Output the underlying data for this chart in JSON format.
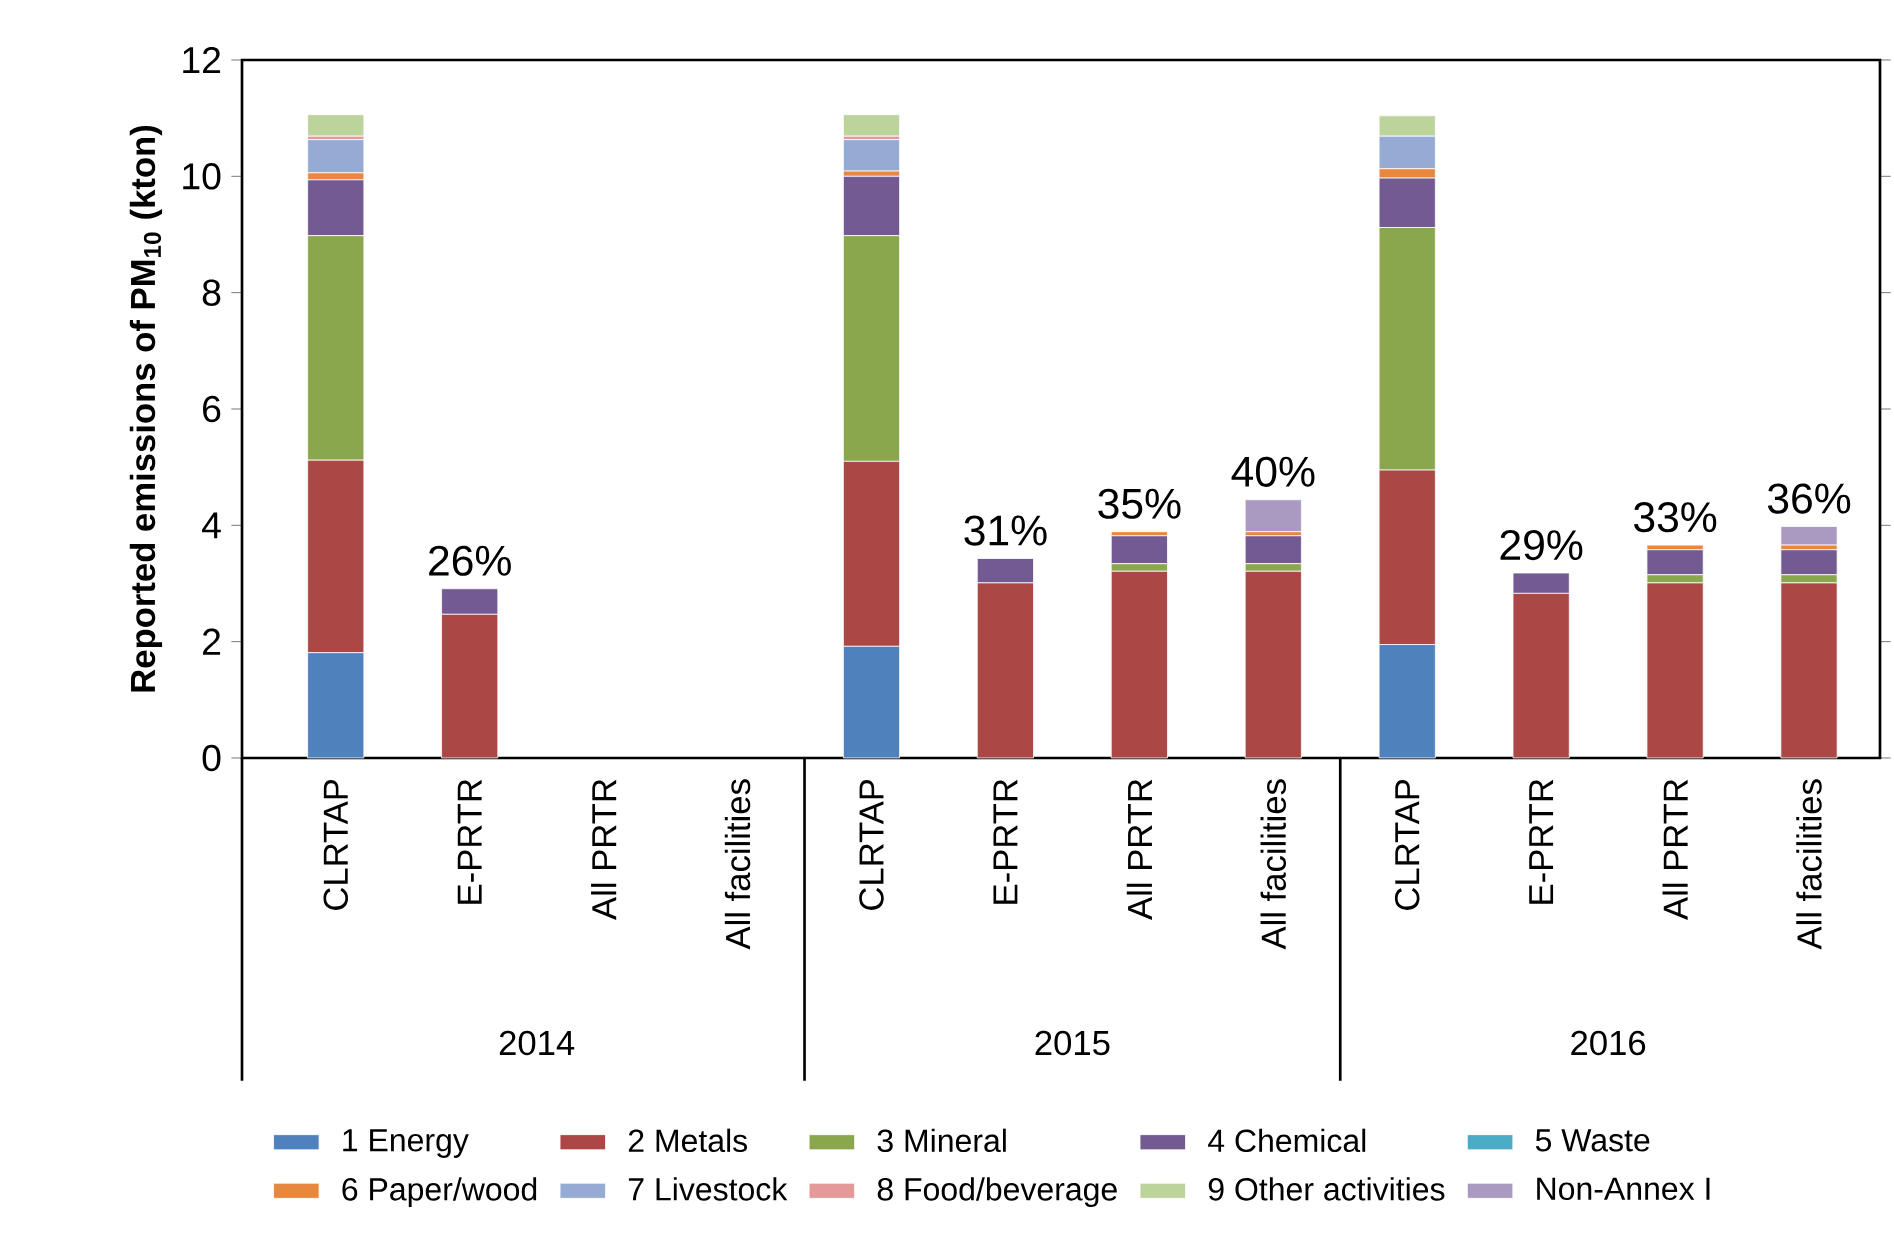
{
  "chart_data": {
    "type": "bar",
    "stacked": true,
    "ylabel": "Reported emissions of PM$_{10}$ (kton)",
    "categories": [
      "CLRTAP",
      "E-PRTR",
      "All PRTR",
      "All facilities",
      "CLRTAP",
      "E-PRTR",
      "All PRTR",
      "All facilities",
      "CLRTAP",
      "E-PRTR",
      "All PRTR",
      "All facilities"
    ],
    "annotations": [
      "2014",
      "2015",
      "2016",
      "26%",
      "31%",
      "35%",
      "40%",
      "29%",
      "33%",
      "36%"
    ],
    "ylim": [
      0,
      12
    ],
    "yticks": [
      0,
      2,
      4,
      6,
      8,
      10,
      12
    ],
    "grid": false,
    "legend": "bottom",
    "series": [
      {
        "name": "1 Energy",
        "color": "#4f81bd",
        "values": [
          1.81,
          0,
          null,
          null,
          1.92,
          0,
          0,
          0,
          1.95,
          0,
          0,
          0
        ]
      },
      {
        "name": "2 Metals",
        "color": "#ab4745",
        "values": [
          3.31,
          2.47,
          null,
          null,
          3.18,
          3.01,
          3.21,
          3.21,
          3.0,
          2.83,
          3.01,
          3.01
        ]
      },
      {
        "name": "3 Mineral",
        "color": "#8ba74e",
        "values": [
          3.86,
          0,
          null,
          null,
          3.88,
          0,
          0.13,
          0.13,
          4.17,
          0,
          0.14,
          0.14
        ]
      },
      {
        "name": "4 Chemical",
        "color": "#735a93",
        "values": [
          0.96,
          0.44,
          null,
          null,
          1.02,
          0.42,
          0.48,
          0.48,
          0.85,
          0.35,
          0.43,
          0.43
        ]
      },
      {
        "name": "5 Waste",
        "color": "#4aacc6",
        "values": [
          0,
          0,
          null,
          null,
          0,
          0,
          0,
          0,
          0,
          0,
          0,
          0
        ]
      },
      {
        "name": "6 Paper/wood",
        "color": "#e8883f",
        "values": [
          0.12,
          0,
          null,
          null,
          0.09,
          0,
          0.07,
          0.07,
          0.16,
          0,
          0.08,
          0.08
        ]
      },
      {
        "name": "7 Livestock",
        "color": "#95abd3",
        "values": [
          0.57,
          0,
          null,
          null,
          0.54,
          0,
          0,
          0,
          0.56,
          0,
          0,
          0
        ]
      },
      {
        "name": "8 Food/beverage",
        "color": "#e39a98",
        "values": [
          0.06,
          0,
          null,
          null,
          0.06,
          0,
          0,
          0,
          0,
          0,
          0,
          0
        ]
      },
      {
        "name": "9 Other activities",
        "color": "#bcd39c",
        "values": [
          0.37,
          0,
          null,
          null,
          0.37,
          0,
          0,
          0,
          0.35,
          0,
          0,
          0
        ]
      },
      {
        "name": "Non-Annex I",
        "color": "#aa9ac2",
        "values": [
          0,
          0,
          null,
          null,
          0,
          0,
          0,
          0.55,
          0,
          0,
          0,
          0.32
        ]
      }
    ]
  }
}
